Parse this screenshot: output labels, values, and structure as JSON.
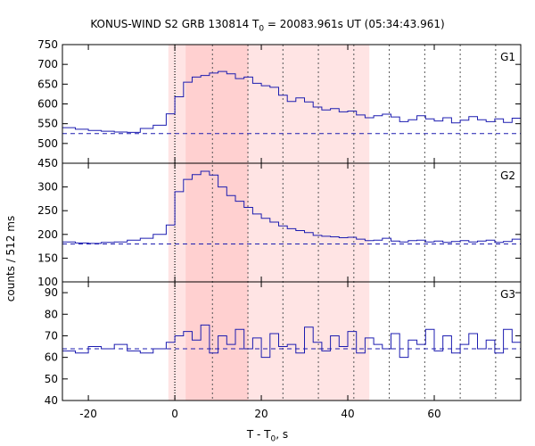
{
  "title": {
    "prefix": "KONUS-WIND S2 GRB 130814 T",
    "sub": "0",
    "suffix": " = 20083.961s UT (05:34:43.961)"
  },
  "xlabel": {
    "prefix": "T - T",
    "sub": "0",
    "suffix": ", s"
  },
  "ylabel": "counts / 512 ms",
  "chart_data": {
    "type": "line",
    "style": "step",
    "xlim": [
      -26,
      80
    ],
    "xticks": [
      -20,
      0,
      20,
      40,
      60
    ],
    "shaded_bands": [
      {
        "from": -1.5,
        "to": 45,
        "color": "#ffe4e4"
      },
      {
        "from": 2.5,
        "to": 17,
        "color": "#ffd0d0"
      }
    ],
    "dotted_markers": [
      0
    ],
    "dashed_markers": [
      8.7,
      16.9,
      25,
      33.2,
      41.4,
      49.6,
      57.8,
      66,
      74.2
    ],
    "panels": [
      {
        "name": "G1",
        "ylim": [
          450,
          750
        ],
        "yticks": [
          450,
          500,
          550,
          600,
          650,
          700,
          750
        ],
        "background": 525,
        "series": {
          "x": [
            -26,
            -23,
            -20,
            -17,
            -14,
            -11,
            -8,
            -5,
            -2,
            0,
            2,
            4,
            6,
            8,
            10,
            12,
            14,
            16,
            18,
            20,
            22,
            24,
            26,
            28,
            30,
            32,
            34,
            36,
            38,
            40,
            42,
            44,
            46,
            48,
            50,
            52,
            54,
            56,
            58,
            60,
            62,
            64,
            66,
            68,
            70,
            72,
            74,
            76,
            78,
            80
          ],
          "y": [
            540,
            536,
            533,
            531,
            529,
            528,
            538,
            546,
            575,
            618,
            655,
            668,
            672,
            678,
            682,
            676,
            664,
            668,
            652,
            646,
            642,
            622,
            606,
            615,
            605,
            592,
            585,
            588,
            580,
            582,
            572,
            565,
            570,
            574,
            567,
            555,
            560,
            570,
            562,
            557,
            565,
            552,
            559,
            568,
            560,
            555,
            562,
            553,
            564,
            556
          ]
        }
      },
      {
        "name": "G2",
        "ylim": [
          100,
          350
        ],
        "yticks": [
          100,
          150,
          200,
          250,
          300,
          350
        ],
        "background": 180,
        "series": {
          "x": [
            -26,
            -23,
            -20,
            -17,
            -14,
            -11,
            -8,
            -5,
            -2,
            0,
            2,
            4,
            6,
            8,
            10,
            12,
            14,
            16,
            18,
            20,
            22,
            24,
            26,
            28,
            30,
            32,
            34,
            36,
            38,
            40,
            42,
            44,
            46,
            48,
            50,
            52,
            54,
            56,
            58,
            60,
            62,
            64,
            66,
            68,
            70,
            72,
            74,
            76,
            78,
            80
          ],
          "y": [
            184,
            182,
            181,
            183,
            184,
            188,
            192,
            200,
            220,
            290,
            316,
            326,
            333,
            325,
            300,
            282,
            270,
            257,
            243,
            234,
            226,
            218,
            212,
            208,
            204,
            198,
            196,
            195,
            193,
            194,
            190,
            187,
            188,
            192,
            186,
            184,
            187,
            188,
            184,
            186,
            183,
            185,
            187,
            184,
            186,
            188,
            183,
            185,
            190,
            188
          ]
        }
      },
      {
        "name": "G3",
        "ylim": [
          40,
          95
        ],
        "yticks": [
          40,
          50,
          60,
          70,
          80,
          90
        ],
        "background": 64,
        "series": {
          "x": [
            -26,
            -23,
            -20,
            -17,
            -14,
            -11,
            -8,
            -5,
            -2,
            0,
            2,
            4,
            6,
            8,
            10,
            12,
            14,
            16,
            18,
            20,
            22,
            24,
            26,
            28,
            30,
            32,
            34,
            36,
            38,
            40,
            42,
            44,
            46,
            48,
            50,
            52,
            54,
            56,
            58,
            60,
            62,
            64,
            66,
            68,
            70,
            72,
            74,
            76,
            78,
            80
          ],
          "y": [
            63,
            62,
            65,
            64,
            66,
            63,
            62,
            64,
            67,
            70,
            72,
            68,
            75,
            62,
            70,
            66,
            73,
            64,
            69,
            60,
            71,
            65,
            66,
            62,
            74,
            67,
            63,
            70,
            65,
            72,
            62,
            69,
            66,
            64,
            71,
            60,
            68,
            66,
            73,
            63,
            70,
            62,
            66,
            71,
            64,
            68,
            62,
            73,
            67,
            65
          ]
        }
      }
    ],
    "colors": {
      "series": "#1c1cb0",
      "background": "#1c1cb0",
      "axis": "#000000",
      "markers": "#555555"
    }
  }
}
